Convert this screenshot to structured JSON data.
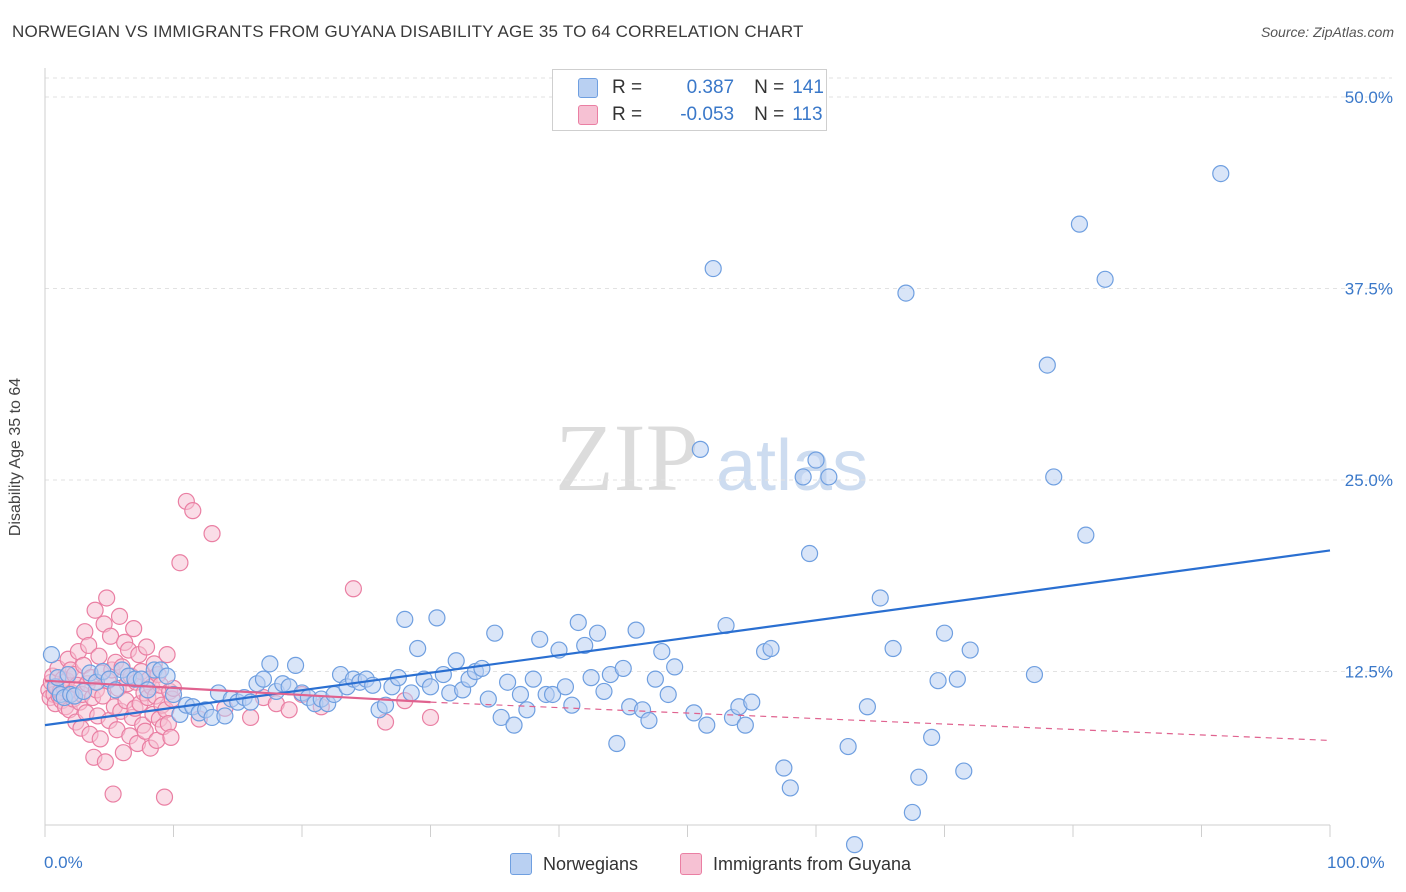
{
  "title": "NORWEGIAN VS IMMIGRANTS FROM GUYANA DISABILITY AGE 35 TO 64 CORRELATION CHART",
  "source": "Source: ZipAtlas.com",
  "watermark": {
    "zip": "ZIP",
    "atlas": "atlas"
  },
  "legend": {
    "rows": [
      {
        "r_label": "R =",
        "r_value": "0.387",
        "n_label": "N =",
        "n_value": "141"
      },
      {
        "r_label": "R =",
        "r_value": "-0.053",
        "n_label": "N =",
        "n_value": "113"
      }
    ]
  },
  "bottom_legend": [
    "Norwegians",
    "Immigrants from Guyana"
  ],
  "colors": {
    "blue": "#6f9fe0",
    "blue_fill": "#b9d0f2",
    "blue_line": "#2a6fd1",
    "pink": "#ea7fa3",
    "pink_fill": "#f6c1d3",
    "pink_line": "#e0628f",
    "tick_text": "#3a78c9"
  },
  "chart_data": {
    "type": "scatter",
    "title": "NORWEGIAN VS IMMIGRANTS FROM GUYANA DISABILITY AGE 35 TO 64 CORRELATION CHART",
    "xlabel": "",
    "ylabel": "Disability Age 35 to 64",
    "xlim": [
      0,
      100
    ],
    "ylim": [
      0,
      50
    ],
    "x_tick_labels": [
      "0.0%",
      "100.0%"
    ],
    "y_ticks": [
      12.5,
      25.0,
      37.5,
      50.0
    ],
    "y_tick_labels": [
      "12.5%",
      "25.0%",
      "37.5%",
      "50.0%"
    ],
    "grid": "horizontal dashed",
    "series": [
      {
        "name": "Norwegians",
        "r": 0.387,
        "n": 141,
        "trend": {
          "x": [
            0,
            100
          ],
          "y": [
            9.0,
            20.4
          ],
          "style": "solid"
        },
        "points": [
          [
            0.5,
            13.6
          ],
          [
            0.8,
            11.5
          ],
          [
            1.0,
            12.1
          ],
          [
            1.2,
            11.0
          ],
          [
            1.5,
            10.8
          ],
          [
            1.8,
            12.3
          ],
          [
            2.0,
            11.0
          ],
          [
            2.3,
            10.9
          ],
          [
            3.0,
            11.2
          ],
          [
            3.5,
            12.4
          ],
          [
            4.0,
            11.8
          ],
          [
            4.5,
            12.5
          ],
          [
            5.0,
            12.0
          ],
          [
            5.5,
            11.3
          ],
          [
            6.0,
            12.6
          ],
          [
            6.5,
            12.2
          ],
          [
            7.0,
            12.0
          ],
          [
            7.5,
            12.0
          ],
          [
            8.0,
            11.3
          ],
          [
            8.5,
            12.6
          ],
          [
            9.0,
            12.6
          ],
          [
            9.5,
            12.2
          ],
          [
            10.0,
            11.0
          ],
          [
            10.5,
            9.7
          ],
          [
            11.0,
            10.3
          ],
          [
            11.5,
            10.2
          ],
          [
            12.0,
            9.8
          ],
          [
            12.5,
            10.0
          ],
          [
            13.0,
            9.5
          ],
          [
            13.5,
            11.1
          ],
          [
            14.0,
            9.6
          ],
          [
            14.5,
            10.7
          ],
          [
            15.0,
            10.5
          ],
          [
            15.5,
            10.8
          ],
          [
            16.0,
            10.5
          ],
          [
            16.5,
            11.7
          ],
          [
            17.0,
            12.0
          ],
          [
            17.5,
            13.0
          ],
          [
            18.0,
            11.2
          ],
          [
            18.5,
            11.7
          ],
          [
            19.0,
            11.5
          ],
          [
            19.5,
            12.9
          ],
          [
            20.0,
            11.1
          ],
          [
            20.5,
            10.8
          ],
          [
            21.0,
            10.4
          ],
          [
            21.5,
            10.7
          ],
          [
            22.0,
            10.4
          ],
          [
            22.5,
            11.0
          ],
          [
            23.0,
            12.3
          ],
          [
            23.5,
            11.5
          ],
          [
            24.0,
            12.0
          ],
          [
            24.5,
            11.8
          ],
          [
            25.0,
            12.0
          ],
          [
            25.5,
            11.6
          ],
          [
            26.0,
            10.0
          ],
          [
            26.5,
            10.3
          ],
          [
            27.0,
            11.5
          ],
          [
            27.5,
            12.1
          ],
          [
            28.0,
            15.9
          ],
          [
            28.5,
            11.1
          ],
          [
            29.0,
            14.0
          ],
          [
            29.5,
            12.0
          ],
          [
            30.0,
            11.5
          ],
          [
            30.5,
            16.0
          ],
          [
            31.0,
            12.3
          ],
          [
            31.5,
            11.1
          ],
          [
            32.0,
            13.2
          ],
          [
            32.5,
            11.3
          ],
          [
            33.0,
            12.0
          ],
          [
            33.5,
            12.5
          ],
          [
            34.0,
            12.7
          ],
          [
            34.5,
            10.7
          ],
          [
            35.0,
            15.0
          ],
          [
            35.5,
            9.5
          ],
          [
            36.0,
            11.8
          ],
          [
            36.5,
            9.0
          ],
          [
            37.0,
            11.0
          ],
          [
            37.5,
            10.0
          ],
          [
            38.0,
            12.0
          ],
          [
            38.5,
            14.6
          ],
          [
            39.0,
            11.0
          ],
          [
            39.5,
            11.0
          ],
          [
            40.0,
            13.9
          ],
          [
            40.5,
            11.5
          ],
          [
            41.0,
            10.3
          ],
          [
            41.5,
            15.7
          ],
          [
            42.0,
            14.2
          ],
          [
            42.5,
            12.1
          ],
          [
            43.0,
            15.0
          ],
          [
            43.5,
            11.2
          ],
          [
            44.0,
            12.3
          ],
          [
            44.5,
            7.8
          ],
          [
            45.0,
            12.7
          ],
          [
            45.5,
            10.2
          ],
          [
            46.0,
            15.2
          ],
          [
            46.5,
            10.0
          ],
          [
            47.0,
            9.3
          ],
          [
            47.5,
            12.0
          ],
          [
            48.0,
            13.8
          ],
          [
            48.5,
            11.0
          ],
          [
            49.0,
            12.8
          ],
          [
            50.5,
            9.8
          ],
          [
            51.0,
            27.0
          ],
          [
            51.5,
            9.0
          ],
          [
            52.0,
            38.8
          ],
          [
            53.0,
            15.5
          ],
          [
            53.5,
            9.5
          ],
          [
            54.0,
            10.2
          ],
          [
            54.5,
            9.0
          ],
          [
            55.0,
            10.5
          ],
          [
            56.0,
            13.8
          ],
          [
            56.5,
            14.0
          ],
          [
            57.5,
            6.2
          ],
          [
            58.0,
            4.9
          ],
          [
            59.0,
            25.2
          ],
          [
            59.5,
            20.2
          ],
          [
            60.0,
            26.3
          ],
          [
            61.0,
            25.2
          ],
          [
            62.5,
            7.6
          ],
          [
            63.0,
            1.2
          ],
          [
            64.0,
            10.2
          ],
          [
            65.0,
            17.3
          ],
          [
            66.0,
            14.0
          ],
          [
            67.0,
            37.2
          ],
          [
            67.5,
            3.3
          ],
          [
            68.0,
            5.6
          ],
          [
            69.0,
            8.2
          ],
          [
            69.5,
            11.9
          ],
          [
            70.0,
            15.0
          ],
          [
            71.0,
            12.0
          ],
          [
            71.5,
            6.0
          ],
          [
            72.0,
            13.9
          ],
          [
            77.0,
            12.3
          ],
          [
            78.0,
            32.5
          ],
          [
            78.5,
            25.2
          ],
          [
            80.5,
            41.7
          ],
          [
            81.0,
            21.4
          ],
          [
            82.5,
            38.1
          ],
          [
            91.5,
            45.0
          ]
        ]
      },
      {
        "name": "Immigrants from Guyana",
        "r": -0.053,
        "n": 113,
        "trend": {
          "x": [
            0,
            30
          ],
          "y": [
            11.9,
            10.5
          ],
          "style": "solid",
          "extension": {
            "x": [
              30,
              100
            ],
            "y": [
              10.5,
              8.0
            ],
            "style": "dashed"
          }
        },
        "points": [
          [
            0.3,
            11.3
          ],
          [
            0.4,
            10.8
          ],
          [
            0.5,
            11.8
          ],
          [
            0.6,
            12.2
          ],
          [
            0.7,
            11.0
          ],
          [
            0.8,
            10.4
          ],
          [
            0.9,
            11.5
          ],
          [
            1.0,
            12.7
          ],
          [
            1.1,
            10.9
          ],
          [
            1.2,
            11.2
          ],
          [
            1.3,
            10.6
          ],
          [
            1.4,
            12.0
          ],
          [
            1.5,
            11.4
          ],
          [
            1.6,
            10.2
          ],
          [
            1.7,
            11.9
          ],
          [
            1.8,
            13.3
          ],
          [
            1.9,
            10.0
          ],
          [
            2.0,
            12.6
          ],
          [
            2.1,
            11.1
          ],
          [
            2.2,
            10.7
          ],
          [
            2.3,
            12.3
          ],
          [
            2.4,
            9.2
          ],
          [
            2.5,
            11.6
          ],
          [
            2.6,
            13.8
          ],
          [
            2.7,
            10.5
          ],
          [
            2.8,
            8.8
          ],
          [
            2.9,
            11.0
          ],
          [
            3.0,
            12.9
          ],
          [
            3.1,
            15.1
          ],
          [
            3.2,
            9.8
          ],
          [
            3.3,
            11.7
          ],
          [
            3.4,
            14.2
          ],
          [
            3.5,
            8.4
          ],
          [
            3.6,
            12.1
          ],
          [
            3.7,
            10.8
          ],
          [
            3.8,
            6.9
          ],
          [
            3.9,
            16.5
          ],
          [
            4.0,
            11.3
          ],
          [
            4.1,
            9.6
          ],
          [
            4.2,
            13.5
          ],
          [
            4.3,
            8.1
          ],
          [
            4.4,
            12.4
          ],
          [
            4.5,
            10.9
          ],
          [
            4.6,
            15.6
          ],
          [
            4.7,
            6.6
          ],
          [
            4.8,
            17.3
          ],
          [
            4.9,
            11.9
          ],
          [
            5.0,
            9.3
          ],
          [
            5.1,
            14.8
          ],
          [
            5.2,
            12.6
          ],
          [
            5.3,
            4.5
          ],
          [
            5.4,
            10.2
          ],
          [
            5.5,
            13.1
          ],
          [
            5.6,
            8.7
          ],
          [
            5.7,
            11.4
          ],
          [
            5.8,
            16.1
          ],
          [
            5.9,
            9.9
          ],
          [
            6.0,
            12.8
          ],
          [
            6.1,
            7.2
          ],
          [
            6.2,
            14.4
          ],
          [
            6.3,
            10.6
          ],
          [
            6.4,
            11.7
          ],
          [
            6.5,
            13.9
          ],
          [
            6.6,
            8.3
          ],
          [
            6.7,
            12.2
          ],
          [
            6.8,
            9.5
          ],
          [
            6.9,
            15.3
          ],
          [
            7.0,
            10.1
          ],
          [
            7.1,
            11.8
          ],
          [
            7.2,
            7.8
          ],
          [
            7.3,
            13.6
          ],
          [
            7.4,
            10.4
          ],
          [
            7.5,
            12.5
          ],
          [
            7.6,
            9.0
          ],
          [
            7.7,
            11.1
          ],
          [
            7.8,
            8.6
          ],
          [
            7.9,
            14.1
          ],
          [
            8.0,
            10.8
          ],
          [
            8.1,
            12.0
          ],
          [
            8.2,
            7.5
          ],
          [
            8.3,
            11.5
          ],
          [
            8.4,
            9.7
          ],
          [
            8.5,
            13.0
          ],
          [
            8.6,
            10.9
          ],
          [
            8.7,
            8.0
          ],
          [
            8.8,
            12.3
          ],
          [
            8.9,
            9.4
          ],
          [
            9.0,
            11.6
          ],
          [
            9.1,
            10.3
          ],
          [
            9.2,
            8.9
          ],
          [
            9.3,
            4.3
          ],
          [
            9.4,
            10.0
          ],
          [
            9.5,
            13.6
          ],
          [
            9.6,
            9.1
          ],
          [
            9.7,
            11.2
          ],
          [
            9.8,
            8.2
          ],
          [
            9.9,
            10.7
          ],
          [
            10.0,
            11.4
          ],
          [
            10.5,
            19.6
          ],
          [
            11.0,
            23.6
          ],
          [
            11.5,
            23.0
          ],
          [
            12.0,
            9.4
          ],
          [
            13.0,
            21.5
          ],
          [
            14.0,
            10.1
          ],
          [
            16.0,
            9.5
          ],
          [
            17.0,
            10.8
          ],
          [
            18.0,
            10.4
          ],
          [
            19.0,
            10.0
          ],
          [
            20.0,
            11.0
          ],
          [
            21.5,
            10.2
          ],
          [
            24.0,
            17.9
          ],
          [
            26.5,
            9.2
          ],
          [
            28.0,
            10.6
          ],
          [
            30.0,
            9.5
          ]
        ]
      }
    ]
  }
}
